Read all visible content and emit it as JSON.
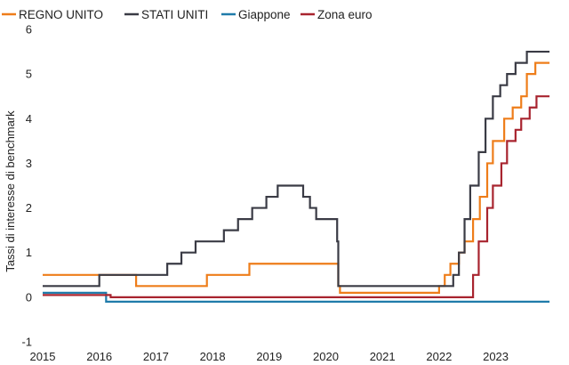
{
  "chart_data": {
    "type": "line",
    "title": "",
    "xlabel": "",
    "ylabel": "Tassi di interesse di benchmark",
    "xlim": [
      2015.0,
      2024.2
    ],
    "ylim": [
      -1,
      6
    ],
    "xticks": [
      2015,
      2016,
      2017,
      2018,
      2019,
      2020,
      2021,
      2022,
      2023
    ],
    "yticks": [
      -1,
      0,
      1,
      2,
      3,
      4,
      5,
      6
    ],
    "grid": false,
    "legend_position": "top-left",
    "series": [
      {
        "name": "REGNO UNITO",
        "color": "#EE7D1A",
        "step": true,
        "points": [
          [
            2015.0,
            0.5
          ],
          [
            2016.6,
            0.5
          ],
          [
            2016.65,
            0.25
          ],
          [
            2017.85,
            0.25
          ],
          [
            2017.9,
            0.5
          ],
          [
            2018.6,
            0.5
          ],
          [
            2018.65,
            0.75
          ],
          [
            2020.2,
            0.75
          ],
          [
            2020.22,
            0.25
          ],
          [
            2020.25,
            0.1
          ],
          [
            2021.95,
            0.1
          ],
          [
            2022.0,
            0.25
          ],
          [
            2022.1,
            0.5
          ],
          [
            2022.2,
            0.75
          ],
          [
            2022.35,
            1.0
          ],
          [
            2022.45,
            1.25
          ],
          [
            2022.6,
            1.75
          ],
          [
            2022.72,
            2.25
          ],
          [
            2022.85,
            3.0
          ],
          [
            2022.95,
            3.5
          ],
          [
            2023.15,
            4.0
          ],
          [
            2023.3,
            4.25
          ],
          [
            2023.45,
            4.5
          ],
          [
            2023.55,
            5.0
          ],
          [
            2023.7,
            5.25
          ],
          [
            2023.95,
            5.25
          ]
        ]
      },
      {
        "name": "STATI UNITI",
        "color": "#3A3B45",
        "step": true,
        "points": [
          [
            2015.0,
            0.25
          ],
          [
            2015.95,
            0.25
          ],
          [
            2016.0,
            0.5
          ],
          [
            2016.95,
            0.5
          ],
          [
            2017.2,
            0.75
          ],
          [
            2017.45,
            1.0
          ],
          [
            2017.7,
            1.25
          ],
          [
            2018.2,
            1.5
          ],
          [
            2018.45,
            1.75
          ],
          [
            2018.7,
            2.0
          ],
          [
            2018.95,
            2.25
          ],
          [
            2019.15,
            2.5
          ],
          [
            2019.55,
            2.5
          ],
          [
            2019.6,
            2.25
          ],
          [
            2019.72,
            2.0
          ],
          [
            2019.83,
            1.75
          ],
          [
            2020.17,
            1.75
          ],
          [
            2020.2,
            1.25
          ],
          [
            2020.22,
            0.25
          ],
          [
            2022.17,
            0.25
          ],
          [
            2022.25,
            0.5
          ],
          [
            2022.35,
            1.0
          ],
          [
            2022.45,
            1.75
          ],
          [
            2022.55,
            2.5
          ],
          [
            2022.7,
            3.25
          ],
          [
            2022.82,
            4.0
          ],
          [
            2022.95,
            4.5
          ],
          [
            2023.08,
            4.75
          ],
          [
            2023.2,
            5.0
          ],
          [
            2023.35,
            5.25
          ],
          [
            2023.55,
            5.5
          ],
          [
            2023.95,
            5.5
          ]
        ]
      },
      {
        "name": "Giappone",
        "color": "#1F7BAA",
        "step": true,
        "points": [
          [
            2015.0,
            0.1
          ],
          [
            2016.1,
            0.1
          ],
          [
            2016.12,
            -0.1
          ],
          [
            2023.95,
            -0.1
          ]
        ]
      },
      {
        "name": "Zona euro",
        "color": "#A8242F",
        "step": true,
        "points": [
          [
            2015.0,
            0.05
          ],
          [
            2016.15,
            0.05
          ],
          [
            2016.2,
            0.0
          ],
          [
            2022.53,
            0.0
          ],
          [
            2022.6,
            0.5
          ],
          [
            2022.7,
            1.25
          ],
          [
            2022.85,
            2.0
          ],
          [
            2022.95,
            2.5
          ],
          [
            2023.1,
            3.0
          ],
          [
            2023.2,
            3.5
          ],
          [
            2023.35,
            3.75
          ],
          [
            2023.45,
            4.0
          ],
          [
            2023.6,
            4.25
          ],
          [
            2023.72,
            4.5
          ],
          [
            2023.95,
            4.5
          ]
        ]
      }
    ]
  }
}
